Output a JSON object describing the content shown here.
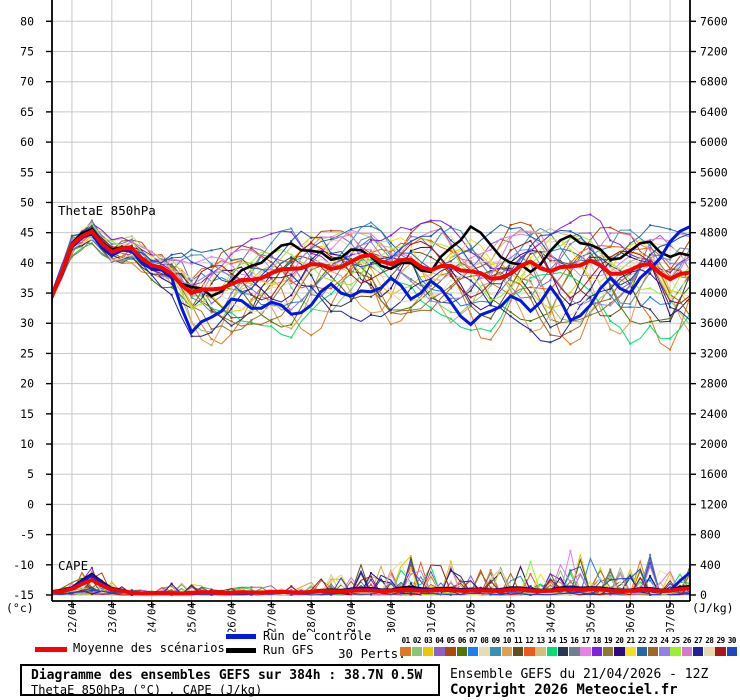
{
  "chart_data": {
    "type": "line",
    "title": "Diagramme des ensembles GEFS sur 384h : 38.7N 0.5W",
    "run": "Ensemble GEFS du 21/04/2026 - 12Z",
    "x_axis": {
      "dates": [
        "22/04",
        "23/04",
        "24/04",
        "25/04",
        "26/04",
        "27/04",
        "28/04",
        "29/04",
        "30/04",
        "01/05",
        "02/05",
        "03/05",
        "04/05",
        "05/05",
        "06/05",
        "07/05"
      ],
      "total_hours": 384,
      "first_label_hour": 12,
      "label_interval_hours": 24,
      "sample_step_hours": 12
    },
    "left_axis": {
      "label": "(°c)",
      "min": -15,
      "max": 80,
      "step": 5
    },
    "right_axis": {
      "label": "(J/kg)",
      "min": 0,
      "max": 7600,
      "step": 400
    },
    "annotations": {
      "thetae": "ThetaE 850hPa",
      "cape": "CAPE"
    },
    "series": {
      "thetae_mean": [
        34.5,
        43.0,
        45.2,
        41.8,
        42.4,
        39.6,
        38.2,
        35.0,
        35.6,
        36.5,
        37.2,
        38.3,
        39.0,
        39.8,
        39.0,
        40.2,
        41.3,
        39.8,
        40.5,
        38.8,
        39.5,
        38.6,
        37.4,
        38.2,
        40.2,
        38.6,
        39.4,
        40.4,
        38.2,
        38.8,
        39.8,
        37.3,
        38.4
      ],
      "thetae_control": [
        34.5,
        42.6,
        44.8,
        41.2,
        42.0,
        39.0,
        37.6,
        28.5,
        31.0,
        34.0,
        32.5,
        33.5,
        31.5,
        33.0,
        36.5,
        34.5,
        35.2,
        37.5,
        34.0,
        37.0,
        33.5,
        29.8,
        32.0,
        34.5,
        32.0,
        36.0,
        30.5,
        33.0,
        37.5,
        35.0,
        39.0,
        43.5,
        46.0
      ],
      "thetae_gfs": [
        34.5,
        43.2,
        45.6,
        42.2,
        42.0,
        39.4,
        38.0,
        36.0,
        34.5,
        37.0,
        39.5,
        41.5,
        43.2,
        42.0,
        40.5,
        42.2,
        41.0,
        39.0,
        40.0,
        38.5,
        42.5,
        46.0,
        43.0,
        40.0,
        38.5,
        42.0,
        44.5,
        43.0,
        40.5,
        42.0,
        43.5,
        41.0,
        41.2
      ],
      "thetae_env_min": [
        33.8,
        41.0,
        43.2,
        39.5,
        40.0,
        37.0,
        34.5,
        27.5,
        25.5,
        27.0,
        28.0,
        28.5,
        27.0,
        28.0,
        29.0,
        29.5,
        30.0,
        29.0,
        30.5,
        30.0,
        29.5,
        28.0,
        26.5,
        28.5,
        27.0,
        25.5,
        26.5,
        28.0,
        26.5,
        26.0,
        28.5,
        25.0,
        26.0
      ],
      "thetae_env_max": [
        35.2,
        44.5,
        47.0,
        43.8,
        44.6,
        42.2,
        42.0,
        42.5,
        43.0,
        43.5,
        44.0,
        45.0,
        46.5,
        46.0,
        45.5,
        46.5,
        47.5,
        46.5,
        46.0,
        47.0,
        47.5,
        46.5,
        46.0,
        47.0,
        46.5,
        47.0,
        47.5,
        48.0,
        46.5,
        46.0,
        47.0,
        46.5,
        47.5
      ],
      "cape_mean": [
        30,
        80,
        200,
        70,
        30,
        25,
        25,
        30,
        35,
        30,
        35,
        40,
        35,
        40,
        50,
        55,
        60,
        55,
        65,
        60,
        65,
        60,
        55,
        70,
        60,
        55,
        70,
        75,
        60,
        55,
        65,
        55,
        90
      ],
      "cape_control": [
        40,
        90,
        260,
        80,
        30,
        20,
        25,
        30,
        30,
        25,
        30,
        40,
        30,
        45,
        60,
        70,
        80,
        60,
        90,
        70,
        80,
        70,
        60,
        90,
        70,
        60,
        100,
        90,
        70,
        60,
        80,
        60,
        300
      ],
      "cape_gfs": [
        50,
        100,
        280,
        90,
        35,
        25,
        30,
        35,
        35,
        30,
        35,
        45,
        40,
        50,
        70,
        80,
        90,
        70,
        110,
        80,
        90,
        80,
        70,
        100,
        80,
        70,
        110,
        100,
        80,
        70,
        90,
        70,
        120
      ],
      "cape_env_max": [
        60,
        180,
        430,
        180,
        70,
        60,
        160,
        180,
        80,
        100,
        120,
        140,
        120,
        180,
        280,
        380,
        450,
        330,
        580,
        430,
        450,
        380,
        330,
        500,
        450,
        330,
        660,
        520,
        450,
        400,
        540,
        320,
        420
      ]
    },
    "colors": {
      "mean": "#FF0000",
      "control": "#0018E0",
      "gfs": "#000000",
      "grid": "#C8C8C8",
      "axis": "#000000"
    },
    "perturbations": {
      "count": 30,
      "labels": [
        "01",
        "02",
        "03",
        "04",
        "05",
        "06",
        "07",
        "08",
        "09",
        "10",
        "11",
        "12",
        "13",
        "14",
        "15",
        "16",
        "17",
        "18",
        "19",
        "20",
        "21",
        "22",
        "23",
        "24",
        "25",
        "26",
        "27",
        "28",
        "29",
        "30"
      ],
      "colors": [
        "#E07820",
        "#86C878",
        "#E8C800",
        "#9060C8",
        "#B04808",
        "#507800",
        "#1880F0",
        "#E8DCB0",
        "#3890B8",
        "#E0A050",
        "#605020",
        "#F05818",
        "#D0C078",
        "#00E070",
        "#283850",
        "#708090",
        "#E880E8",
        "#8020E0",
        "#907830",
        "#300880",
        "#F0E020",
        "#2068A8",
        "#A06820",
        "#9080E8",
        "#98F030",
        "#D878D0",
        "#2020A0",
        "#E8D8B0",
        "#A81818",
        "#1848C8"
      ]
    }
  },
  "legend": {
    "mean": "Moyenne des scénarios",
    "control": "Run de contrôle",
    "gfs": "Run GFS",
    "perts": "30 Perts."
  },
  "footer": {
    "title": "Diagramme des ensembles GEFS sur 384h : 38.7N 0.5W",
    "subtitle": "ThetaE 850hPa (°C) , CAPE (J/kg)",
    "run_info": "Ensemble GEFS du 21/04/2026 - 12Z",
    "copyright": "Copyright 2026 Meteociel.fr"
  }
}
